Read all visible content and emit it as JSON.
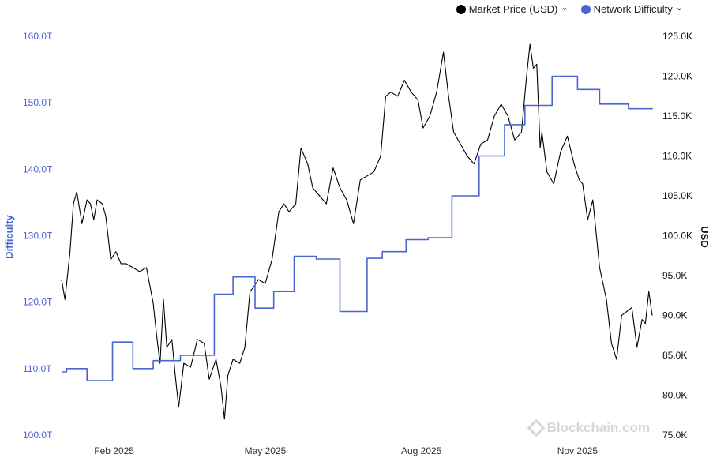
{
  "legend": {
    "market_price": "Market Price (USD)",
    "network_difficulty": "Network Difficulty",
    "chevron": "⌄"
  },
  "watermark": "Blockchain.com",
  "colors": {
    "price": "#000000",
    "difficulty": "#4a66cf",
    "left_axis": "#4a66cf"
  },
  "chart_data": {
    "type": "line",
    "xlabel": "",
    "x_ticks": [
      "Feb 2025",
      "May 2025",
      "Aug 2025",
      "Nov 2025"
    ],
    "left_axis": {
      "label": "Difficulty",
      "ticks": [
        "100.0T",
        "110.0T",
        "120.0T",
        "130.0T",
        "140.0T",
        "150.0T",
        "160.0T"
      ],
      "ylim": [
        100,
        160
      ]
    },
    "right_axis": {
      "label": "USD",
      "ticks": [
        "75.0K",
        "80.0K",
        "85.0K",
        "90.0K",
        "95.0K",
        "100.0K",
        "105.0K",
        "110.0K",
        "115.0K",
        "120.0K",
        "125.0K"
      ],
      "ylim": [
        75,
        125
      ]
    },
    "xlim": [
      "2025-01-01",
      "2025-12-15"
    ],
    "grid": false,
    "legend_position": "top-right",
    "series": [
      {
        "name": "Market Price (USD)",
        "axis": "right",
        "unit": "K USD",
        "x": [
          "2025-01-01",
          "2025-01-03",
          "2025-01-06",
          "2025-01-08",
          "2025-01-10",
          "2025-01-13",
          "2025-01-16",
          "2025-01-18",
          "2025-01-20",
          "2025-01-22",
          "2025-01-25",
          "2025-01-27",
          "2025-01-30",
          "2025-02-02",
          "2025-02-05",
          "2025-02-08",
          "2025-02-12",
          "2025-02-16",
          "2025-02-20",
          "2025-02-24",
          "2025-02-26",
          "2025-02-28",
          "2025-03-02",
          "2025-03-04",
          "2025-03-07",
          "2025-03-09",
          "2025-03-11",
          "2025-03-14",
          "2025-03-18",
          "2025-03-22",
          "2025-03-26",
          "2025-03-29",
          "2025-04-02",
          "2025-04-05",
          "2025-04-07",
          "2025-04-09",
          "2025-04-12",
          "2025-04-16",
          "2025-04-19",
          "2025-04-22",
          "2025-04-24",
          "2025-04-27",
          "2025-05-01",
          "2025-05-05",
          "2025-05-09",
          "2025-05-12",
          "2025-05-15",
          "2025-05-19",
          "2025-05-22",
          "2025-05-26",
          "2025-05-29",
          "2025-06-02",
          "2025-06-06",
          "2025-06-10",
          "2025-06-14",
          "2025-06-18",
          "2025-06-22",
          "2025-06-26",
          "2025-06-30",
          "2025-07-04",
          "2025-07-08",
          "2025-07-11",
          "2025-07-14",
          "2025-07-18",
          "2025-07-22",
          "2025-07-26",
          "2025-07-30",
          "2025-08-02",
          "2025-08-06",
          "2025-08-10",
          "2025-08-14",
          "2025-08-17",
          "2025-08-20",
          "2025-08-24",
          "2025-08-28",
          "2025-09-01",
          "2025-09-05",
          "2025-09-09",
          "2025-09-13",
          "2025-09-17",
          "2025-09-21",
          "2025-09-25",
          "2025-09-29",
          "2025-10-02",
          "2025-10-04",
          "2025-10-06",
          "2025-10-08",
          "2025-10-10",
          "2025-10-11",
          "2025-10-14",
          "2025-10-18",
          "2025-10-22",
          "2025-10-26",
          "2025-10-30",
          "2025-11-02",
          "2025-11-04",
          "2025-11-07",
          "2025-11-10",
          "2025-11-14",
          "2025-11-18",
          "2025-11-21",
          "2025-11-24",
          "2025-11-27",
          "2025-11-30",
          "2025-12-03",
          "2025-12-06",
          "2025-12-09",
          "2025-12-11",
          "2025-12-13",
          "2025-12-15"
        ],
        "y": [
          94.5,
          92.0,
          98.0,
          104.0,
          105.5,
          101.5,
          104.5,
          104.0,
          102.0,
          104.5,
          104.0,
          102.5,
          97.0,
          98.0,
          96.5,
          96.5,
          96.0,
          95.5,
          96.0,
          91.5,
          87.5,
          84.0,
          92.0,
          86.0,
          87.0,
          82.5,
          78.5,
          84.0,
          83.5,
          87.0,
          86.5,
          82.0,
          84.5,
          81.0,
          77.0,
          82.5,
          84.5,
          84.0,
          86.0,
          93.0,
          93.5,
          94.5,
          94.0,
          97.0,
          103.0,
          104.0,
          103.0,
          104.0,
          111.0,
          109.0,
          106.0,
          105.0,
          104.0,
          108.5,
          106.0,
          104.5,
          101.5,
          107.0,
          107.5,
          108.0,
          110.0,
          117.5,
          118.0,
          117.5,
          119.5,
          118.0,
          117.0,
          113.5,
          115.0,
          118.0,
          123.0,
          117.5,
          113.0,
          111.5,
          110.0,
          109.0,
          111.5,
          112.0,
          115.0,
          116.5,
          115.0,
          112.0,
          113.0,
          120.0,
          124.0,
          121.0,
          121.5,
          111.0,
          113.0,
          108.0,
          106.5,
          110.5,
          112.5,
          109.0,
          107.0,
          106.5,
          102.0,
          104.5,
          96.0,
          92.0,
          86.5,
          84.5,
          90.0,
          90.5,
          91.0,
          86.0,
          89.5,
          89.0,
          93.0,
          90.0
        ]
      },
      {
        "name": "Network Difficulty",
        "axis": "left",
        "unit": "T",
        "step": true,
        "x": [
          "2025-01-01",
          "2025-01-04",
          "2025-01-16",
          "2025-01-31",
          "2025-02-12",
          "2025-02-24",
          "2025-03-12",
          "2025-04-01",
          "2025-04-12",
          "2025-04-25",
          "2025-05-06",
          "2025-05-18",
          "2025-05-31",
          "2025-06-14",
          "2025-06-30",
          "2025-07-09",
          "2025-07-23",
          "2025-08-05",
          "2025-08-19",
          "2025-09-04",
          "2025-09-19",
          "2025-10-01",
          "2025-10-17",
          "2025-11-01",
          "2025-11-14",
          "2025-12-01",
          "2025-12-15"
        ],
        "y": [
          109.5,
          110.0,
          108.2,
          114.0,
          110.0,
          111.2,
          112.0,
          121.2,
          123.8,
          119.1,
          121.6,
          126.9,
          126.5,
          118.6,
          126.6,
          127.6,
          129.4,
          129.7,
          136.0,
          142.0,
          146.7,
          149.6,
          154.0,
          152.0,
          149.8,
          149.1,
          149.2
        ]
      }
    ]
  }
}
